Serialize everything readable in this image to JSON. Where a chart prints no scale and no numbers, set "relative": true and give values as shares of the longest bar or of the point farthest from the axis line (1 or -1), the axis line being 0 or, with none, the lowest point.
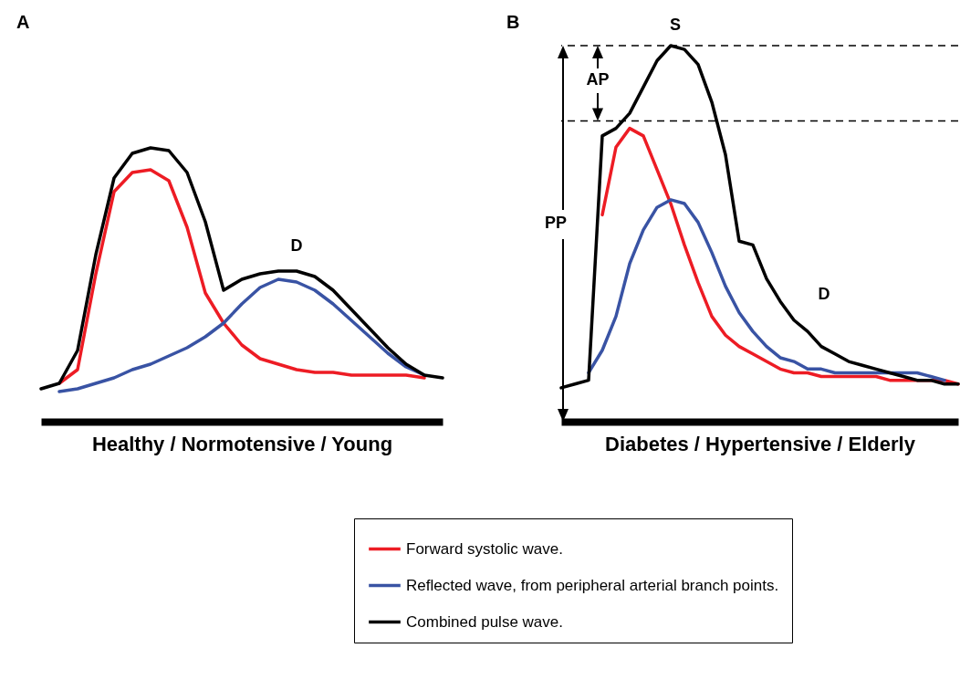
{
  "chart_data": [
    {
      "type": "line",
      "title": "A",
      "xlabel": "Healthy / Normotensive / Young",
      "relative": true,
      "legend": "bottom",
      "annotations": [
        "D"
      ],
      "categories": [
        null,
        null,
        null,
        null,
        null,
        null,
        null,
        null,
        null,
        null,
        null,
        null,
        null,
        null,
        null,
        null,
        null,
        null,
        null,
        null,
        null,
        null,
        null
      ],
      "series": [
        {
          "name": "Forward systolic wave.",
          "color": "#ed1c24",
          "values": [
            null,
            0.14,
            0.19,
            0.54,
            0.84,
            0.91,
            0.92,
            0.88,
            0.71,
            0.47,
            0.36,
            0.28,
            0.23,
            0.21,
            0.19,
            0.18,
            0.18,
            0.17,
            0.17,
            0.17,
            0.17,
            0.16,
            null
          ]
        },
        {
          "name": "Reflected wave, from peripheral arterial branch points.",
          "color": "#3953a4",
          "values": [
            null,
            0.11,
            0.12,
            0.14,
            0.16,
            0.19,
            0.21,
            0.24,
            0.27,
            0.31,
            0.36,
            0.43,
            0.49,
            0.52,
            0.51,
            0.48,
            0.43,
            0.37,
            0.31,
            0.25,
            0.2,
            0.17,
            null
          ]
        },
        {
          "name": "Combined pulse wave.",
          "color": "#000000",
          "values": [
            0.12,
            0.14,
            0.26,
            0.61,
            0.89,
            0.98,
            1,
            0.99,
            0.91,
            0.73,
            0.48,
            0.52,
            0.54,
            0.55,
            0.55,
            0.53,
            0.48,
            0.41,
            0.34,
            0.27,
            0.21,
            0.17,
            0.16
          ]
        }
      ]
    },
    {
      "type": "line",
      "title": "B",
      "xlabel": "Diabetes / Hypertensive / Elderly",
      "relative": true,
      "legend": "bottom",
      "annotations": [
        "S",
        "AP",
        "PP",
        "D"
      ],
      "ref_lines": [
        {
          "axis": "y",
          "value": 1,
          "line_style": "dashed",
          "color": "#000000"
        },
        {
          "axis": "y",
          "value": 0.8,
          "line_style": "dashed",
          "color": "#000000"
        }
      ],
      "categories": [
        null,
        null,
        null,
        null,
        null,
        null,
        null,
        null,
        null,
        null,
        null,
        null,
        null,
        null,
        null,
        null,
        null,
        null,
        null,
        null,
        null,
        null,
        null,
        null,
        null,
        null,
        null,
        null,
        null,
        null
      ],
      "series": [
        {
          "name": "Forward systolic wave.",
          "color": "#ed1c24",
          "values": [
            null,
            null,
            null,
            0.55,
            0.73,
            0.78,
            0.76,
            0.67,
            0.58,
            0.47,
            0.37,
            0.28,
            0.23,
            0.2,
            0.18,
            0.16,
            0.14,
            0.13,
            0.13,
            0.12,
            0.12,
            0.12,
            0.12,
            0.12,
            0.11,
            0.11,
            0.11,
            0.11,
            0.11,
            0.1
          ]
        },
        {
          "name": "Reflected wave, from peripheral arterial branch points.",
          "color": "#3953a4",
          "values": [
            null,
            null,
            0.13,
            0.19,
            0.28,
            0.42,
            0.51,
            0.57,
            0.59,
            0.58,
            0.53,
            0.45,
            0.36,
            0.29,
            0.24,
            0.2,
            0.17,
            0.16,
            0.14,
            0.14,
            0.13,
            0.13,
            0.13,
            0.13,
            0.13,
            0.13,
            0.13,
            0.12,
            0.11,
            null
          ]
        },
        {
          "name": "Combined pulse wave.",
          "color": "#000000",
          "values": [
            0.09,
            0.1,
            0.11,
            0.76,
            0.78,
            0.82,
            0.89,
            0.96,
            1,
            0.99,
            0.95,
            0.85,
            0.71,
            0.48,
            0.47,
            0.38,
            0.32,
            0.27,
            0.24,
            0.2,
            0.18,
            0.16,
            0.15,
            0.14,
            0.13,
            0.12,
            0.11,
            0.11,
            0.1,
            0.1
          ]
        }
      ]
    }
  ]
}
